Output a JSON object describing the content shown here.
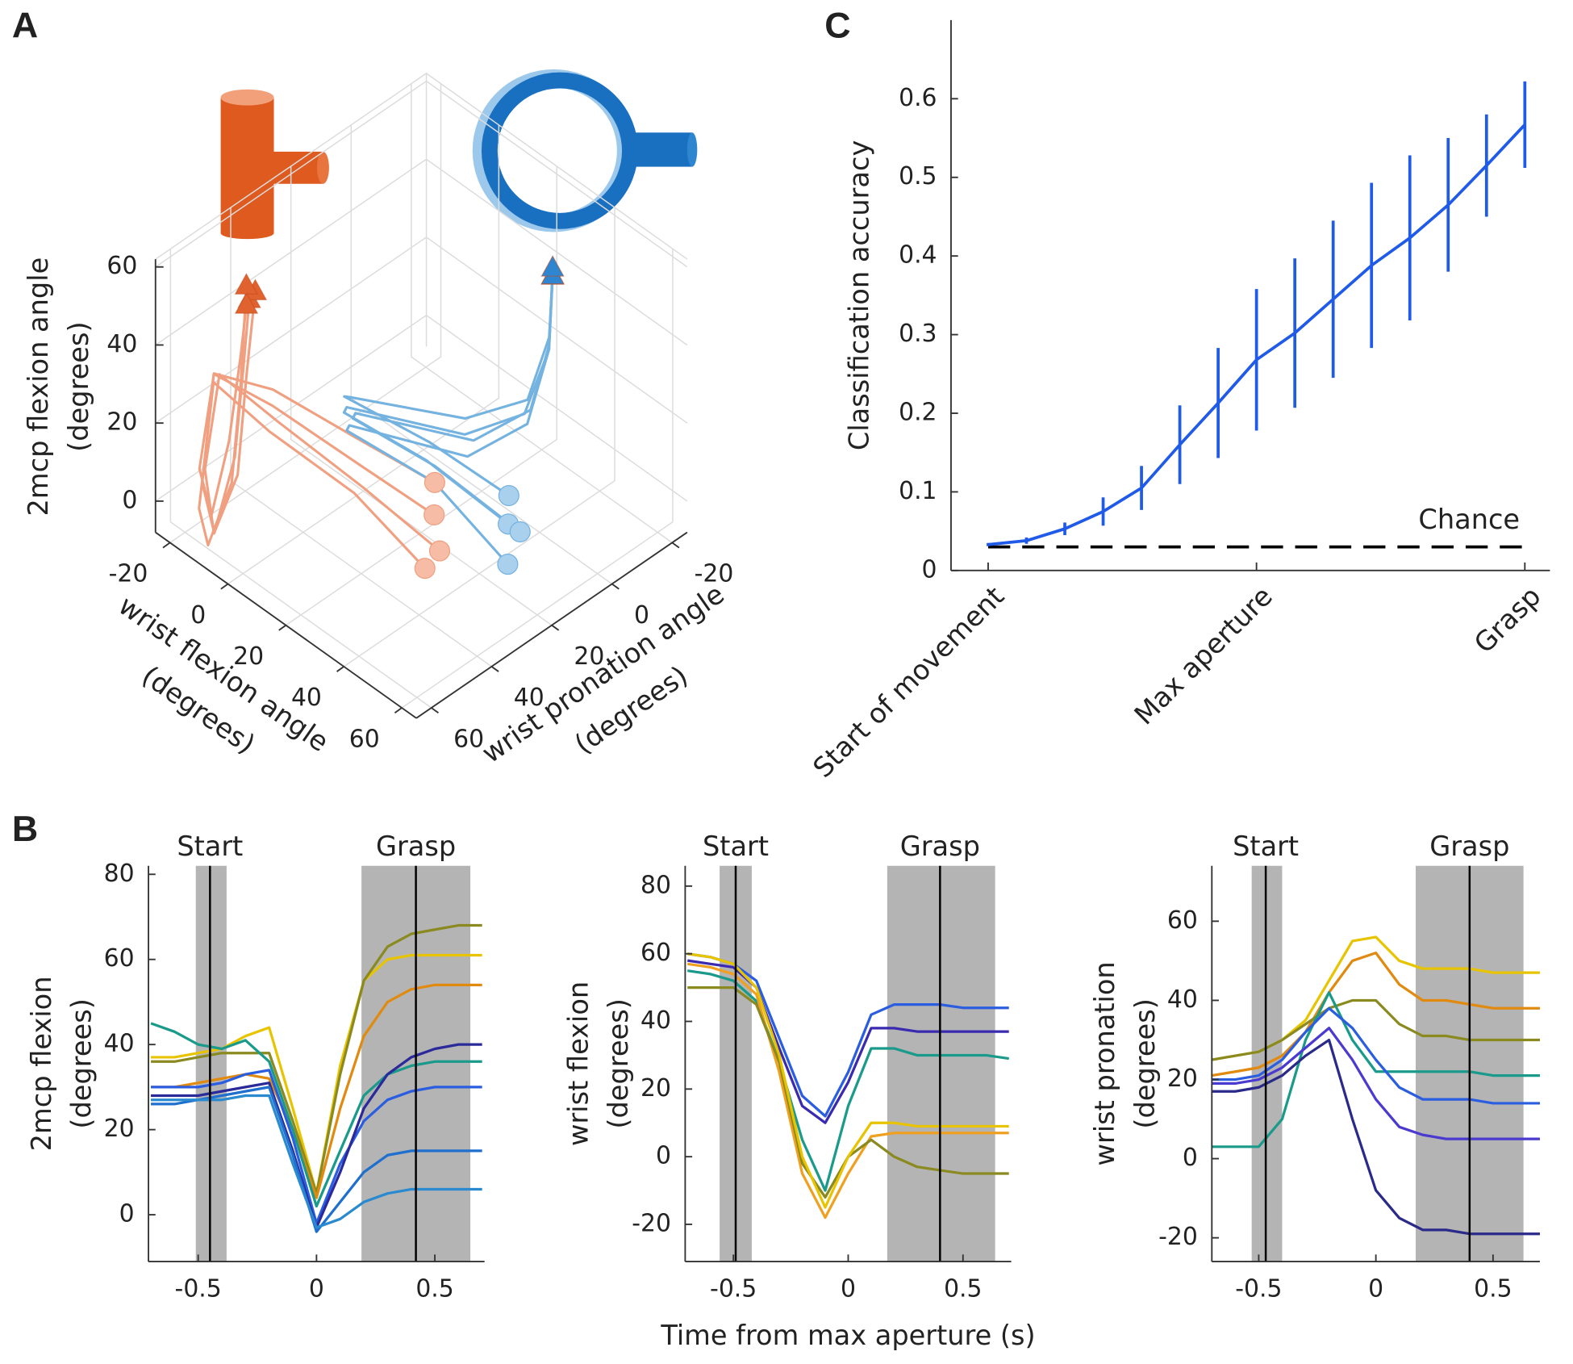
{
  "chart_data": [
    {
      "type": "line3d",
      "panel": "A",
      "xlabel": [
        "wrist flexion angle",
        "(degrees)"
      ],
      "ylabel": [
        "wrist pronation angle",
        "(degrees)"
      ],
      "zlabel": [
        "2mcp flexion angle",
        "(degrees)"
      ],
      "xlim": [
        -25,
        65
      ],
      "ylim": [
        -25,
        65
      ],
      "zlim": [
        -8,
        62
      ],
      "xticks": [
        -20,
        0,
        20,
        40,
        60
      ],
      "yticks": [
        -20,
        0,
        20,
        40,
        60
      ],
      "zticks": [
        0,
        20,
        40,
        60
      ],
      "grid": true,
      "series": [
        {
          "color": "#f0a080",
          "start_color": "#f6bca6",
          "end_color": "#e0622e",
          "x": [
            40,
            25,
            5,
            -8,
            -12,
            -12,
            -8,
            -5,
            -3
          ],
          "y": [
            35,
            45,
            55,
            62,
            62,
            58,
            55,
            55,
            55
          ],
          "z": [
            15,
            25,
            35,
            40,
            10,
            -5,
            15,
            40,
            58
          ]
        },
        {
          "color": "#f0a080",
          "start_color": "#f6bca6",
          "end_color": "#e0622e",
          "x": [
            45,
            28,
            8,
            -5,
            -10,
            -10,
            -6,
            -4,
            -2
          ],
          "y": [
            38,
            47,
            56,
            63,
            63,
            60,
            56,
            55,
            54
          ],
          "z": [
            10,
            22,
            33,
            42,
            15,
            -3,
            12,
            38,
            60
          ]
        },
        {
          "color": "#f0a080",
          "start_color": "#f6bca6",
          "end_color": "#e0622e",
          "x": [
            35,
            20,
            2,
            -10,
            -14,
            -14,
            -10,
            -6,
            -4
          ],
          "y": [
            30,
            42,
            52,
            60,
            61,
            57,
            55,
            55,
            55
          ],
          "z": [
            18,
            28,
            36,
            38,
            12,
            -2,
            18,
            42,
            56
          ]
        },
        {
          "color": "#f0a080",
          "start_color": "#f6bca6",
          "end_color": "#e0622e",
          "x": [
            42,
            26,
            6,
            -6,
            -11,
            -11,
            -7,
            -5,
            -3
          ],
          "y": [
            40,
            48,
            57,
            64,
            64,
            61,
            57,
            56,
            56
          ],
          "z": [
            5,
            20,
            30,
            40,
            5,
            -6,
            10,
            35,
            62
          ]
        },
        {
          "color": "#74b2e0",
          "start_color": "#a9d1ee",
          "end_color": "#2f86d0",
          "x": [
            50,
            30,
            12,
            15,
            35,
            40,
            35,
            30
          ],
          "y": [
            20,
            28,
            38,
            40,
            20,
            5,
            -8,
            -14
          ],
          "z": [
            10,
            20,
            28,
            32,
            25,
            25,
            32,
            45
          ]
        },
        {
          "color": "#74b2e0",
          "start_color": "#a9d1ee",
          "end_color": "#2f86d0",
          "x": [
            55,
            35,
            15,
            18,
            38,
            42,
            36,
            31
          ],
          "y": [
            25,
            30,
            40,
            42,
            22,
            6,
            -7,
            -13
          ],
          "z": [
            5,
            18,
            26,
            30,
            22,
            24,
            33,
            46
          ]
        },
        {
          "color": "#74b2e0",
          "start_color": "#a9d1ee",
          "end_color": "#2f86d0",
          "x": [
            45,
            28,
            10,
            14,
            33,
            39,
            34,
            29
          ],
          "y": [
            15,
            25,
            36,
            38,
            18,
            3,
            -9,
            -15
          ],
          "z": [
            12,
            22,
            30,
            33,
            27,
            27,
            34,
            44
          ]
        },
        {
          "color": "#74b2e0",
          "start_color": "#a9d1ee",
          "end_color": "#2f86d0",
          "x": [
            52,
            32,
            14,
            17,
            37,
            41,
            35,
            30
          ],
          "y": [
            18,
            27,
            37,
            39,
            19,
            4,
            -8,
            -14
          ],
          "z": [
            8,
            19,
            27,
            31,
            24,
            26,
            33,
            47
          ]
        }
      ]
    },
    {
      "type": "line",
      "panel": "B",
      "ylabel": [
        "2mcp flexion",
        "(degrees)"
      ],
      "x": [
        -0.7,
        -0.6,
        -0.5,
        -0.4,
        -0.3,
        -0.2,
        -0.1,
        0,
        0.1,
        0.2,
        0.3,
        0.4,
        0.5,
        0.6,
        0.7
      ],
      "xlim": [
        -0.71,
        0.71
      ],
      "ylim": [
        -11,
        82
      ],
      "xticks": [
        -0.5,
        0,
        0.5
      ],
      "yticks": [
        0,
        20,
        40,
        60,
        80
      ],
      "events": [
        {
          "label": "Start",
          "center": -0.45,
          "range": [
            -0.51,
            -0.38
          ]
        },
        {
          "label": "Grasp",
          "center": 0.42,
          "range": [
            0.19,
            0.65
          ]
        }
      ],
      "series": [
        {
          "color": "#e8c400",
          "values": [
            37,
            37,
            38,
            39,
            42,
            44,
            25,
            5,
            35,
            55,
            60,
            61,
            61,
            61,
            61
          ]
        },
        {
          "color": "#8a8a20",
          "values": [
            36,
            36,
            37,
            38,
            38,
            38,
            22,
            5,
            33,
            55,
            63,
            66,
            67,
            68,
            68
          ]
        },
        {
          "color": "#e08a10",
          "values": [
            30,
            30,
            31,
            32,
            33,
            32,
            20,
            4,
            25,
            42,
            50,
            53,
            54,
            54,
            54
          ]
        },
        {
          "color": "#1a9a8a",
          "values": [
            45,
            43,
            40,
            39,
            41,
            36,
            20,
            2,
            15,
            28,
            33,
            35,
            36,
            36,
            36
          ]
        },
        {
          "color": "#2a5de0",
          "values": [
            30,
            30,
            30,
            31,
            33,
            34,
            18,
            -2,
            12,
            22,
            27,
            29,
            30,
            30,
            30
          ]
        },
        {
          "color": "#2a2a9a",
          "values": [
            28,
            28,
            28,
            29,
            30,
            31,
            15,
            -3,
            10,
            25,
            33,
            37,
            39,
            40,
            40
          ]
        },
        {
          "color": "#1f6fcf",
          "values": [
            26,
            26,
            27,
            28,
            29,
            30,
            14,
            -4,
            3,
            10,
            14,
            15,
            15,
            15,
            15
          ]
        },
        {
          "color": "#2a8ad0",
          "values": [
            27,
            27,
            27,
            27,
            28,
            28,
            12,
            -3,
            -1,
            3,
            5,
            6,
            6,
            6,
            6
          ]
        }
      ]
    },
    {
      "type": "line",
      "ylabel": [
        "wrist flexion",
        "(degrees)"
      ],
      "xlabel": "Time from max aperture (s)",
      "x": [
        -0.7,
        -0.6,
        -0.5,
        -0.4,
        -0.3,
        -0.2,
        -0.1,
        0,
        0.1,
        0.2,
        0.3,
        0.4,
        0.5,
        0.6,
        0.7
      ],
      "xlim": [
        -0.71,
        0.71
      ],
      "ylim": [
        -31,
        86
      ],
      "xticks": [
        -0.5,
        0,
        0.5
      ],
      "yticks": [
        -20,
        0,
        20,
        40,
        60,
        80
      ],
      "events": [
        {
          "label": "Start",
          "center": -0.49,
          "range": [
            -0.56,
            -0.42
          ]
        },
        {
          "label": "Grasp",
          "center": 0.4,
          "range": [
            0.17,
            0.64
          ]
        }
      ],
      "series": [
        {
          "color": "#2a5de0",
          "values": [
            60,
            59,
            57,
            52,
            35,
            18,
            12,
            25,
            42,
            45,
            45,
            45,
            44,
            44,
            44
          ]
        },
        {
          "color": "#3a2ab0",
          "values": [
            58,
            57,
            56,
            50,
            32,
            15,
            10,
            22,
            38,
            38,
            37,
            37,
            37,
            37,
            37
          ]
        },
        {
          "color": "#1a9a8a",
          "values": [
            55,
            54,
            52,
            46,
            28,
            5,
            -10,
            15,
            32,
            32,
            30,
            30,
            30,
            30,
            29
          ]
        },
        {
          "color": "#f0a020",
          "values": [
            57,
            56,
            54,
            48,
            25,
            -5,
            -18,
            -5,
            6,
            7,
            7,
            7,
            7,
            7,
            7
          ]
        },
        {
          "color": "#8a8a20",
          "values": [
            50,
            50,
            50,
            45,
            28,
            -2,
            -12,
            0,
            5,
            0,
            -3,
            -4,
            -5,
            -5,
            -5
          ]
        },
        {
          "color": "#e8c400",
          "values": [
            60,
            59,
            57,
            50,
            30,
            0,
            -15,
            0,
            10,
            10,
            9,
            9,
            9,
            9,
            9
          ]
        }
      ]
    },
    {
      "type": "line",
      "ylabel": [
        "wrist pronation",
        "(degrees)"
      ],
      "x": [
        -0.7,
        -0.6,
        -0.5,
        -0.4,
        -0.3,
        -0.2,
        -0.1,
        0,
        0.1,
        0.2,
        0.3,
        0.4,
        0.5,
        0.6,
        0.7
      ],
      "xlim": [
        -0.7,
        0.7
      ],
      "ylim": [
        -26,
        74
      ],
      "xticks": [
        -0.5,
        0,
        0.5
      ],
      "yticks": [
        -20,
        0,
        20,
        40,
        60
      ],
      "events": [
        {
          "label": "Start",
          "center": -0.47,
          "range": [
            -0.53,
            -0.4
          ]
        },
        {
          "label": "Grasp",
          "center": 0.4,
          "range": [
            0.17,
            0.63
          ]
        }
      ],
      "series": [
        {
          "color": "#e8c400",
          "values": [
            25,
            26,
            27,
            30,
            35,
            45,
            55,
            56,
            50,
            48,
            48,
            48,
            47,
            47,
            47
          ]
        },
        {
          "color": "#e08a10",
          "values": [
            21,
            22,
            23,
            26,
            32,
            42,
            50,
            52,
            44,
            40,
            40,
            39,
            38,
            38,
            38
          ]
        },
        {
          "color": "#8a8a20",
          "values": [
            25,
            26,
            27,
            30,
            34,
            38,
            40,
            40,
            34,
            31,
            31,
            30,
            30,
            30,
            30
          ]
        },
        {
          "color": "#1a9a8a",
          "values": [
            3,
            3,
            3,
            10,
            30,
            42,
            30,
            22,
            22,
            22,
            22,
            22,
            21,
            21,
            21
          ]
        },
        {
          "color": "#2a5de0",
          "values": [
            20,
            20,
            21,
            25,
            32,
            38,
            33,
            25,
            18,
            15,
            15,
            15,
            14,
            14,
            14
          ]
        },
        {
          "color": "#2a2a8a",
          "values": [
            17,
            17,
            18,
            21,
            26,
            30,
            10,
            -8,
            -15,
            -18,
            -18,
            -19,
            -19,
            -19,
            -19
          ]
        },
        {
          "color": "#4a3ad0",
          "values": [
            19,
            19,
            20,
            23,
            28,
            33,
            25,
            15,
            8,
            6,
            5,
            5,
            5,
            5,
            5
          ]
        }
      ]
    },
    {
      "type": "errorbar",
      "panel": "C",
      "ylabel": "Classification accuracy",
      "categories": [
        "Start of movement",
        null,
        null,
        null,
        null,
        null,
        null,
        "Max aperture",
        null,
        null,
        null,
        null,
        null,
        null,
        "Grasp"
      ],
      "values": [
        0.033,
        0.038,
        0.053,
        0.075,
        0.105,
        0.16,
        0.213,
        0.268,
        0.302,
        0.345,
        0.388,
        0.423,
        0.465,
        0.515,
        0.567
      ],
      "errors": [
        0.002,
        0.004,
        0.008,
        0.018,
        0.028,
        0.05,
        0.07,
        0.09,
        0.095,
        0.1,
        0.105,
        0.105,
        0.085,
        0.065,
        0.055
      ],
      "color": "#1f5ae8",
      "ylim": [
        0,
        0.7
      ],
      "yticks": [
        0,
        0.1,
        0.2,
        0.3,
        0.4,
        0.5,
        0.6
      ],
      "chance": 0.03,
      "chance_label": "Chance"
    }
  ]
}
